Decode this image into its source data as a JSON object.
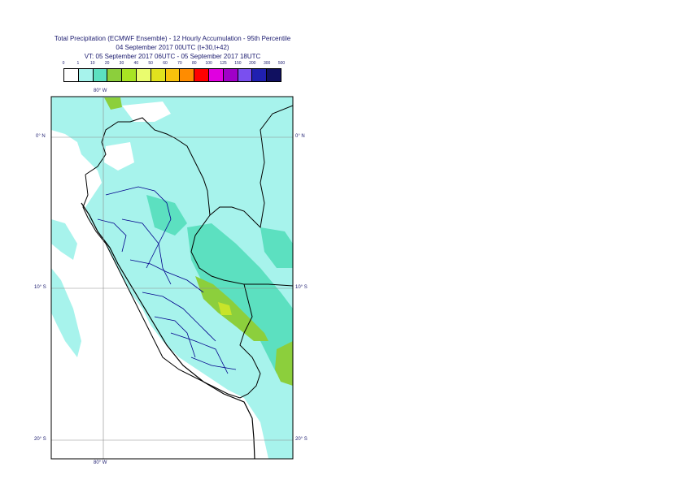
{
  "title": {
    "line1": "Total Precipitation (ECMWF Ensemble) - 12 Hourly Accumulation - 95th Percentile",
    "line2": "04 September 2017 00UTC (t+30,t+42)",
    "line3": "VT: 05 September 2017 06UTC - 05 September 2017 18UTC"
  },
  "legend": {
    "ticks": [
      "0",
      "1",
      "10",
      "20",
      "30",
      "40",
      "50",
      "60",
      "70",
      "80",
      "100",
      "125",
      "150",
      "200",
      "300",
      "500"
    ],
    "colors": [
      "#ffffff",
      "#a7f3ec",
      "#5ce0c0",
      "#8ccf3c",
      "#a8e423",
      "#eafc6e",
      "#e1e21e",
      "#f8c20c",
      "#ff8c00",
      "#ff0000",
      "#e000e0",
      "#a000c8",
      "#7a4fef",
      "#2020b0",
      "#101060"
    ]
  },
  "axes": {
    "lon_top": "80° W",
    "lon_bottom": "80° W",
    "lat_0_left": "0° N",
    "lat_0_right": "0° N",
    "lat_10_left": "10° S",
    "lat_10_right": "10° S",
    "lat_20_left": "20° S",
    "lat_20_right": "20° S"
  },
  "colors": {
    "ocean": "#ffffff",
    "light_precip": "#a7f3ec",
    "mid_precip": "#5ce0c0",
    "heavy_precip": "#8ccf3c",
    "yellow_precip": "#c8e42a",
    "border": "#000000",
    "admin": "#00008b",
    "grid": "#8c8c8c"
  }
}
